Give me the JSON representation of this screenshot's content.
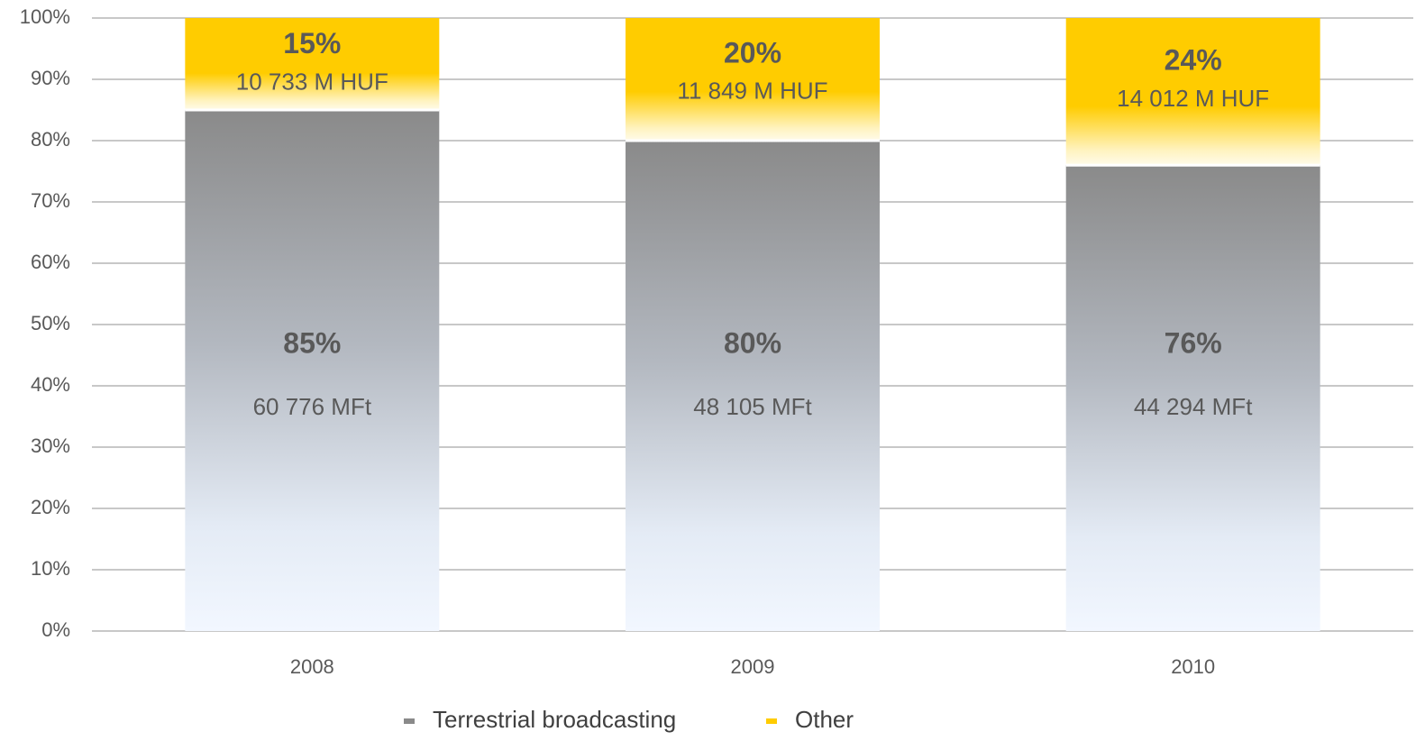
{
  "chart_data": {
    "type": "stacked_bar",
    "categories": [
      "2008",
      "2009",
      "2010"
    ],
    "series": [
      {
        "name": "Terrestrial broadcasting",
        "color": "#8a8a8a",
        "values": [
          85,
          80,
          76
        ],
        "value_labels": [
          "85%",
          "80%",
          "76%"
        ],
        "amount_labels": [
          "60 776 MFt",
          "48 105 MFt",
          "44 294 MFt"
        ]
      },
      {
        "name": "Other",
        "color": "#ffcc00",
        "values": [
          15,
          20,
          24
        ],
        "value_labels": [
          "15%",
          "20%",
          "24%"
        ],
        "amount_labels": [
          "10 733 M HUF",
          "11 849 M HUF",
          "14 012 M HUF"
        ]
      }
    ],
    "ylim": [
      0,
      100
    ],
    "yticks": [
      {
        "value": 0,
        "label": "0%"
      },
      {
        "value": 10,
        "label": "10%"
      },
      {
        "value": 20,
        "label": "20%"
      },
      {
        "value": 30,
        "label": "30%"
      },
      {
        "value": 40,
        "label": "40%"
      },
      {
        "value": 50,
        "label": "50%"
      },
      {
        "value": 60,
        "label": "60%"
      },
      {
        "value": 70,
        "label": "70%"
      },
      {
        "value": 80,
        "label": "80%"
      },
      {
        "value": 90,
        "label": "90%"
      },
      {
        "value": 100,
        "label": "100%"
      }
    ],
    "grid": true,
    "legend": "bottom"
  }
}
